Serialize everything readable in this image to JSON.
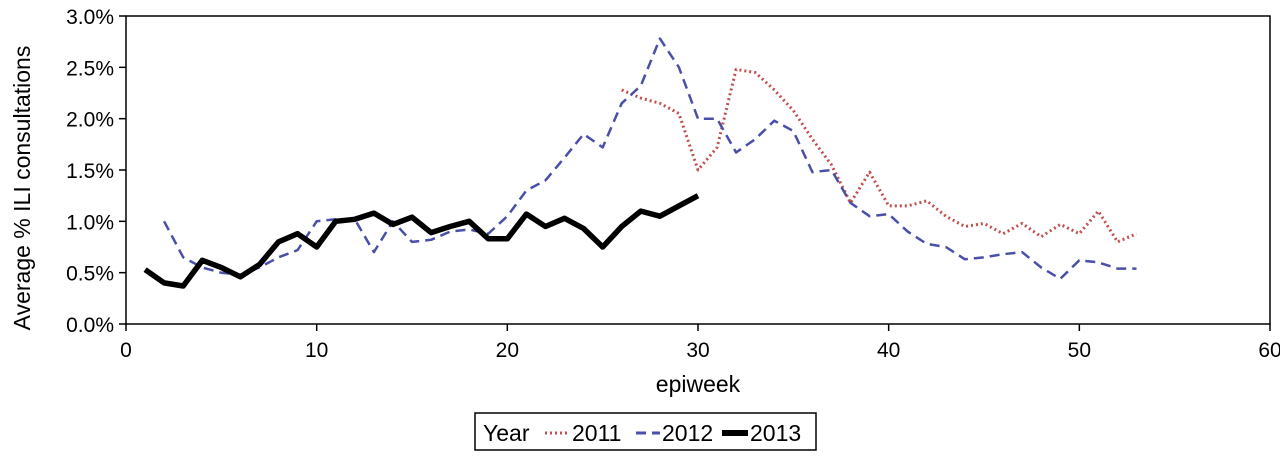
{
  "chart_data": {
    "type": "line",
    "xlabel": "epiweek",
    "ylabel": "Average % ILI consultations",
    "xlim": [
      0,
      60
    ],
    "ylim": [
      0,
      3.0
    ],
    "xticks": [
      "0",
      "10",
      "20",
      "30",
      "40",
      "50",
      "60"
    ],
    "yticks": [
      "0.0%",
      "0.5%",
      "1.0%",
      "1.5%",
      "2.0%",
      "2.5%",
      "3.0%"
    ],
    "legend": {
      "title": "Year",
      "placement": "bottom-center"
    },
    "series": [
      {
        "name": "2011",
        "color": "#c0504d",
        "style": "dotted",
        "x": [
          26,
          27,
          28,
          29,
          30,
          31,
          32,
          33,
          34,
          35,
          36,
          37,
          38,
          39,
          40,
          41,
          42,
          43,
          44,
          45,
          46,
          47,
          48,
          49,
          50,
          51,
          52,
          53
        ],
        "y": [
          2.28,
          2.2,
          2.15,
          2.05,
          1.5,
          1.72,
          2.48,
          2.45,
          2.28,
          2.08,
          1.8,
          1.55,
          1.18,
          1.48,
          1.15,
          1.15,
          1.2,
          1.05,
          0.95,
          0.98,
          0.88,
          0.98,
          0.85,
          0.97,
          0.88,
          1.1,
          0.8,
          0.88
        ]
      },
      {
        "name": "2012",
        "color": "#4a4fa8",
        "style": "dashed",
        "x": [
          2,
          3,
          4,
          5,
          6,
          7,
          8,
          9,
          10,
          11,
          12,
          13,
          14,
          15,
          16,
          17,
          18,
          19,
          20,
          21,
          22,
          23,
          24,
          25,
          26,
          27,
          28,
          29,
          30,
          31,
          32,
          33,
          34,
          35,
          36,
          37,
          38,
          39,
          40,
          41,
          42,
          43,
          44,
          45,
          46,
          47,
          48,
          49,
          50,
          51,
          52,
          53
        ],
        "y": [
          1.0,
          0.65,
          0.55,
          0.5,
          0.48,
          0.55,
          0.65,
          0.72,
          1.0,
          1.02,
          1.02,
          0.7,
          1.0,
          0.8,
          0.82,
          0.9,
          0.92,
          0.88,
          1.05,
          1.3,
          1.4,
          1.62,
          1.85,
          1.72,
          2.15,
          2.32,
          2.78,
          2.5,
          2.0,
          2.0,
          1.67,
          1.8,
          1.98,
          1.88,
          1.48,
          1.5,
          1.18,
          1.05,
          1.07,
          0.9,
          0.78,
          0.75,
          0.63,
          0.65,
          0.68,
          0.7,
          0.55,
          0.44,
          0.62,
          0.6,
          0.54,
          0.54
        ]
      },
      {
        "name": "2013",
        "color": "#000000",
        "style": "solid",
        "x": [
          1,
          2,
          3,
          4,
          5,
          6,
          7,
          8,
          9,
          10,
          11,
          12,
          13,
          14,
          15,
          16,
          17,
          18,
          19,
          20,
          21,
          22,
          23,
          24,
          25,
          26,
          27,
          28,
          29,
          30
        ],
        "y": [
          0.53,
          0.4,
          0.37,
          0.62,
          0.55,
          0.46,
          0.58,
          0.8,
          0.88,
          0.75,
          1.0,
          1.02,
          1.08,
          0.97,
          1.04,
          0.89,
          0.95,
          1.0,
          0.83,
          0.83,
          1.07,
          0.95,
          1.03,
          0.93,
          0.75,
          0.95,
          1.1,
          1.05,
          1.15,
          1.25
        ]
      }
    ]
  }
}
